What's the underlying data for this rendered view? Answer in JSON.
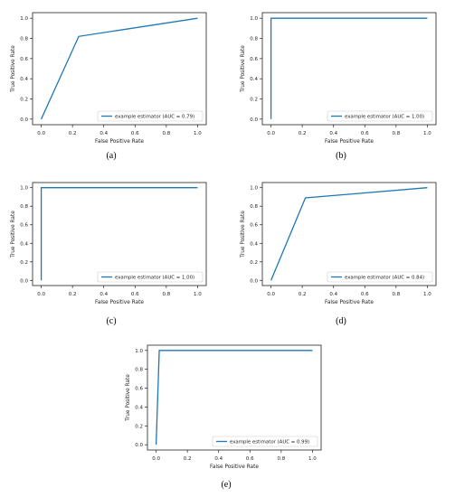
{
  "chart_data": [
    {
      "id": "a",
      "type": "line",
      "caption": "(a)",
      "xlabel": "False Positive Rate",
      "ylabel": "True Positive Rate",
      "xlim": [
        0,
        1
      ],
      "ylim": [
        0,
        1
      ],
      "xticks": [
        "0.0",
        "0.2",
        "0.4",
        "0.6",
        "0.8",
        "1.0"
      ],
      "yticks": [
        "0.0",
        "0.2",
        "0.4",
        "0.6",
        "0.8",
        "1.0"
      ],
      "series": [
        {
          "name": "example estimator (AUC = 0.79)",
          "x": [
            0.0,
            0.24,
            1.0
          ],
          "y": [
            0.0,
            0.82,
            1.0
          ]
        }
      ],
      "legend": "bottom-right",
      "grid": false,
      "color": "#1f77b4"
    },
    {
      "id": "b",
      "type": "line",
      "caption": "(b)",
      "xlabel": "False Positive Rate",
      "ylabel": "True Positive Rate",
      "xlim": [
        0,
        1
      ],
      "ylim": [
        0,
        1
      ],
      "xticks": [
        "0.0",
        "0.2",
        "0.4",
        "0.6",
        "0.8",
        "1.0"
      ],
      "yticks": [
        "0.0",
        "0.2",
        "0.4",
        "0.6",
        "0.8",
        "1.0"
      ],
      "series": [
        {
          "name": "example estimator (AUC = 1.00)",
          "x": [
            0.0,
            0.0,
            1.0
          ],
          "y": [
            0.0,
            1.0,
            1.0
          ]
        }
      ],
      "legend": "bottom-right",
      "grid": false,
      "color": "#1f77b4"
    },
    {
      "id": "c",
      "type": "line",
      "caption": "(c)",
      "xlabel": "False Positive Rate",
      "ylabel": "True Positive Rate",
      "xlim": [
        0,
        1
      ],
      "ylim": [
        0,
        1
      ],
      "xticks": [
        "0.0",
        "0.2",
        "0.4",
        "0.6",
        "0.8",
        "1.0"
      ],
      "yticks": [
        "0.0",
        "0.2",
        "0.4",
        "0.6",
        "0.8",
        "1.0"
      ],
      "series": [
        {
          "name": "example estimator (AUC = 1.00)",
          "x": [
            0.0,
            0.0,
            1.0
          ],
          "y": [
            0.0,
            1.0,
            1.0
          ]
        }
      ],
      "legend": "bottom-right",
      "grid": false,
      "color": "#1f77b4"
    },
    {
      "id": "d",
      "type": "line",
      "caption": "(d)",
      "xlabel": "False Positive Rate",
      "ylabel": "True Positive Rate",
      "xlim": [
        0,
        1
      ],
      "ylim": [
        0,
        1
      ],
      "xticks": [
        "0.0",
        "0.2",
        "0.4",
        "0.6",
        "0.8",
        "1.0"
      ],
      "yticks": [
        "0.0",
        "0.2",
        "0.4",
        "0.6",
        "0.8",
        "1.0"
      ],
      "series": [
        {
          "name": "example estimator (AUC = 0.84)",
          "x": [
            0.0,
            0.22,
            1.0
          ],
          "y": [
            0.0,
            0.89,
            1.0
          ]
        }
      ],
      "legend": "bottom-right",
      "grid": false,
      "color": "#1f77b4"
    },
    {
      "id": "e",
      "type": "line",
      "caption": "(e)",
      "xlabel": "False Positive Rate",
      "ylabel": "True Positive Rate",
      "xlim": [
        0,
        1
      ],
      "ylim": [
        0,
        1
      ],
      "xticks": [
        "0.0",
        "0.2",
        "0.4",
        "0.6",
        "0.8",
        "1.0"
      ],
      "yticks": [
        "0.0",
        "0.2",
        "0.4",
        "0.6",
        "0.8",
        "1.0"
      ],
      "series": [
        {
          "name": "example estimator (AUC = 0.99)",
          "x": [
            0.0,
            0.02,
            1.0
          ],
          "y": [
            0.0,
            1.0,
            1.0
          ]
        }
      ],
      "legend": "bottom-right",
      "grid": false,
      "color": "#1f77b4"
    }
  ]
}
